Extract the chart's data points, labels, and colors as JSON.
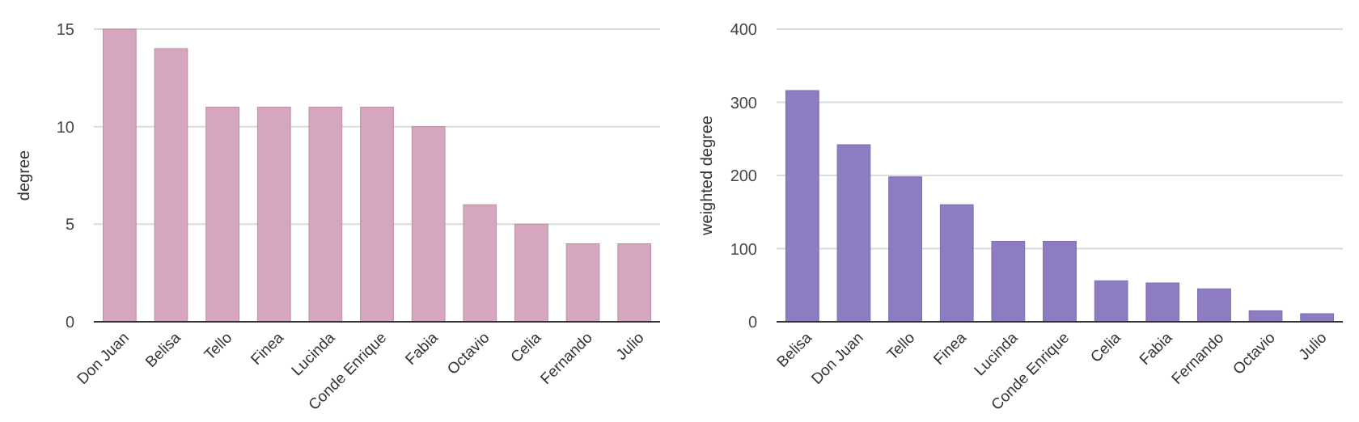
{
  "chart_data": [
    {
      "type": "bar",
      "ylabel": "degree",
      "categories": [
        "Don Juan",
        "Belisa",
        "Tello",
        "Finea",
        "Lucinda",
        "Conde Enrique",
        "Fabia",
        "Octavio",
        "Celia",
        "Fernando",
        "Julio"
      ],
      "values": [
        15,
        14,
        11,
        11,
        11,
        11,
        10,
        6,
        5,
        4,
        4
      ],
      "color": "#d5a6bd",
      "ylim": [
        0,
        15
      ],
      "yticks": [
        0,
        5,
        10,
        15
      ],
      "grid": "y"
    },
    {
      "type": "bar",
      "ylabel": "weighted degree",
      "categories": [
        "Belisa",
        "Don Juan",
        "Tello",
        "Finea",
        "Lucinda",
        "Conde Enrique",
        "Celia",
        "Fabia",
        "Fernando",
        "Octavio",
        "Julio"
      ],
      "values": [
        316,
        242,
        198,
        160,
        110,
        110,
        56,
        53,
        45,
        15,
        11
      ],
      "color": "#8e7cc3",
      "ylim": [
        0,
        400
      ],
      "yticks": [
        0,
        100,
        200,
        300,
        400
      ],
      "grid": "y"
    }
  ]
}
